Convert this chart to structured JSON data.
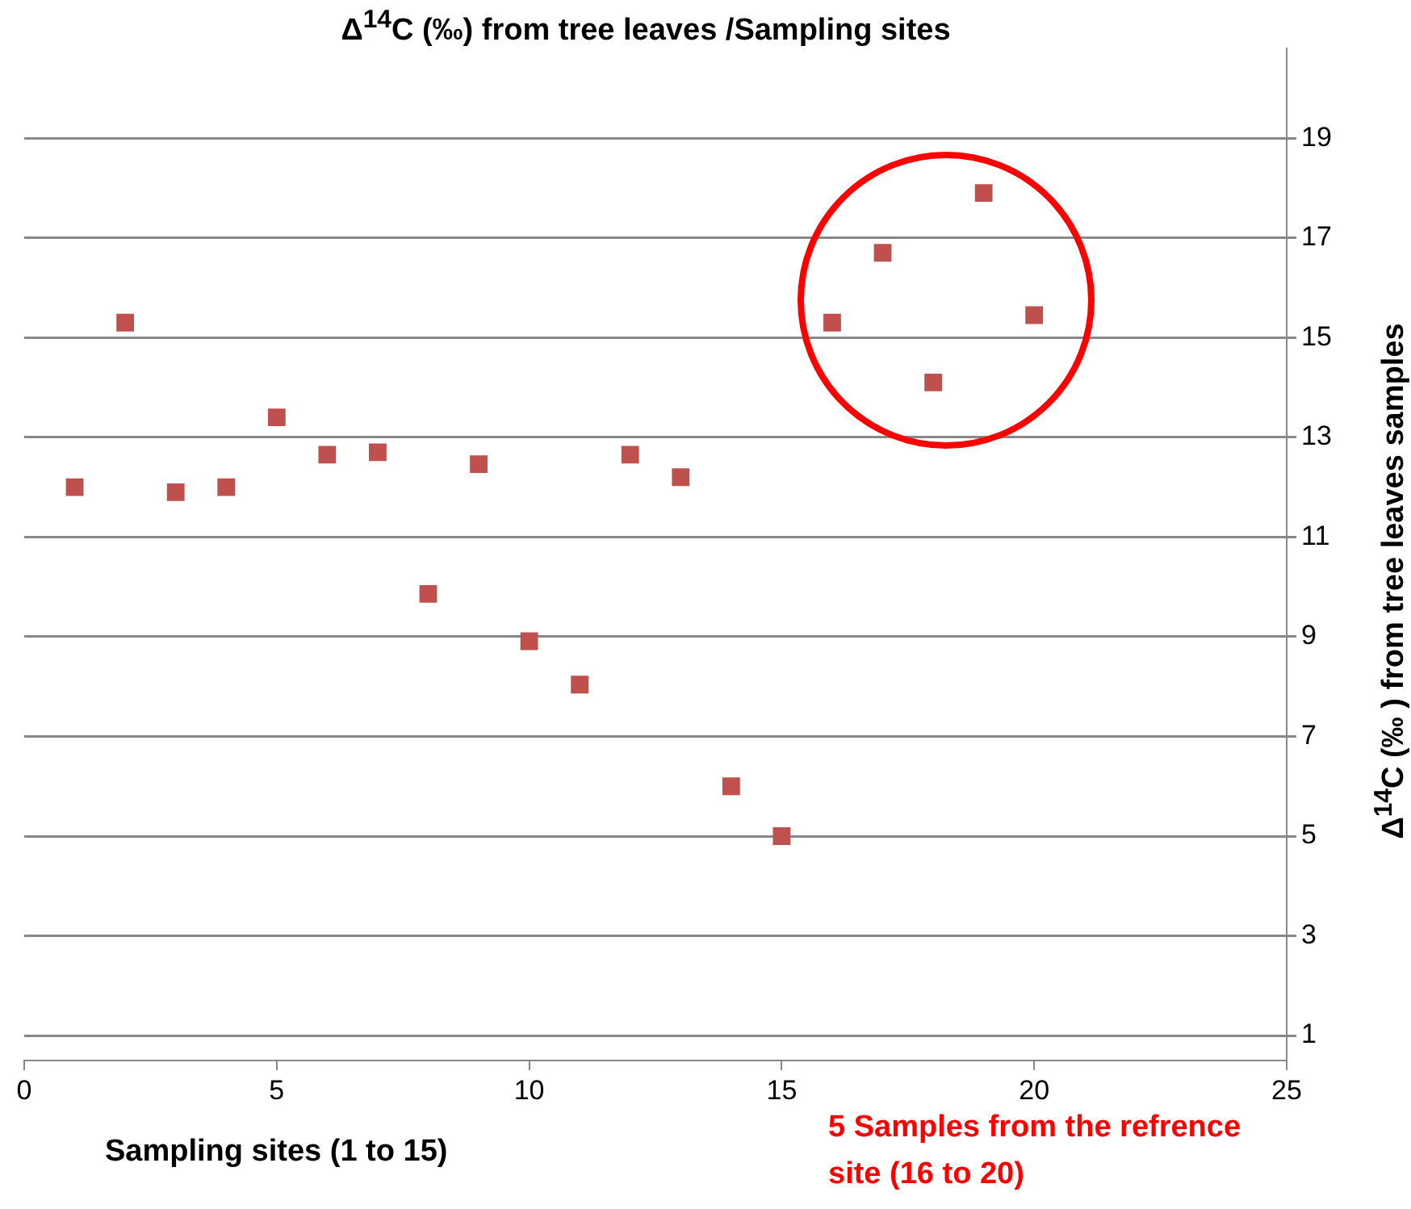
{
  "chart_data": {
    "type": "scatter",
    "title": "Δ$^{14}$C (‰) from tree leaves /Sampling sites",
    "xlabel": "Sampling sites (1 to 15)",
    "ylabel": "Δ$^{14}$C (‰ ) from tree leaves samples",
    "annotations": [
      "5 Samples from the refrence  site (16 to 20)"
    ],
    "x": [
      1,
      2,
      3,
      4,
      5,
      6,
      7,
      8,
      9,
      10,
      11,
      12,
      13,
      14,
      15,
      16,
      17,
      18,
      19,
      20
    ],
    "series": [
      {
        "color": "#c0504d",
        "values": [
          12.0,
          15.3,
          11.9,
          12.0,
          13.4,
          12.65,
          12.7,
          9.86,
          12.46,
          8.91,
          8.04,
          12.65,
          12.2,
          6.0,
          5.0,
          15.3,
          16.7,
          14.1,
          17.9,
          15.45
        ]
      }
    ],
    "xlim": [
      0,
      25
    ],
    "xticks": [
      0,
      5,
      10,
      15,
      20,
      25
    ],
    "ylim": [
      0.5,
      20.8
    ],
    "yticks": [
      1,
      3,
      5,
      7,
      9,
      11,
      13,
      15,
      17,
      19
    ],
    "grid": "y",
    "legend": false,
    "marker": "square"
  }
}
